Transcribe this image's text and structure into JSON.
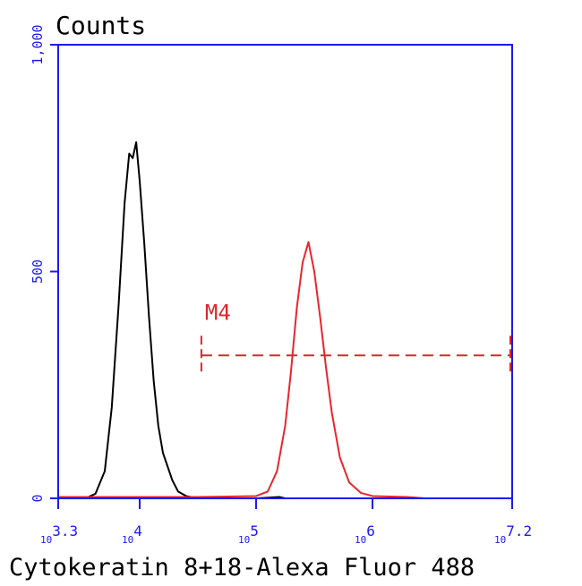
{
  "chart_data": {
    "type": "line",
    "title": "Counts",
    "x_label": "Cytokeratin 8+18-Alexa Fluor 488",
    "xscale": "log",
    "xlim": [
      1995,
      15848932
    ],
    "ylim": [
      0,
      1000
    ],
    "xticks": [
      {
        "value": 1995,
        "label": "10",
        "exponent": "3.3"
      },
      {
        "value": 10000,
        "label": "10",
        "exponent": "4"
      },
      {
        "value": 100000,
        "label": "10",
        "exponent": "5"
      },
      {
        "value": 1000000,
        "label": "10",
        "exponent": "6"
      },
      {
        "value": 15848932,
        "label": "10",
        "exponent": "7.2"
      }
    ],
    "yticks": [
      0,
      500,
      {
        "value": 1000,
        "label": "1,000"
      }
    ],
    "axis_color": "#1a1aee",
    "series": [
      {
        "color": "#000000",
        "x": [
          1995,
          3548,
          4169,
          5012,
          5754,
          6607,
          7413,
          8128,
          8710,
          9333,
          10000,
          10965,
          12023,
          13183,
          14454,
          15849,
          17378,
          19055,
          21380,
          25119,
          31623,
          100000,
          158489,
          177828,
          15848932
        ],
        "values": [
          0,
          2,
          10,
          60,
          200,
          430,
          650,
          760,
          750,
          785,
          700,
          560,
          400,
          260,
          160,
          100,
          70,
          40,
          15,
          5,
          0,
          0,
          3,
          0,
          0
        ]
      },
      {
        "color": "#e8262a",
        "x": [
          1995,
          31623,
          100000,
          125893,
          151356,
          177828,
          199526,
          223872,
          251189,
          281838,
          316228,
          354813,
          398107,
          446684,
          524807,
          630957,
          794328,
          1000000,
          1995262,
          2818383,
          15848932
        ],
        "values": [
          3,
          3,
          5,
          15,
          60,
          160,
          280,
          420,
          520,
          565,
          500,
          400,
          290,
          190,
          90,
          35,
          12,
          5,
          3,
          0,
          0
        ]
      }
    ],
    "markers": [
      {
        "label": "M4",
        "color": "#d8282c",
        "x": [
          33884,
          15848932
        ],
        "y": 315
      }
    ]
  }
}
